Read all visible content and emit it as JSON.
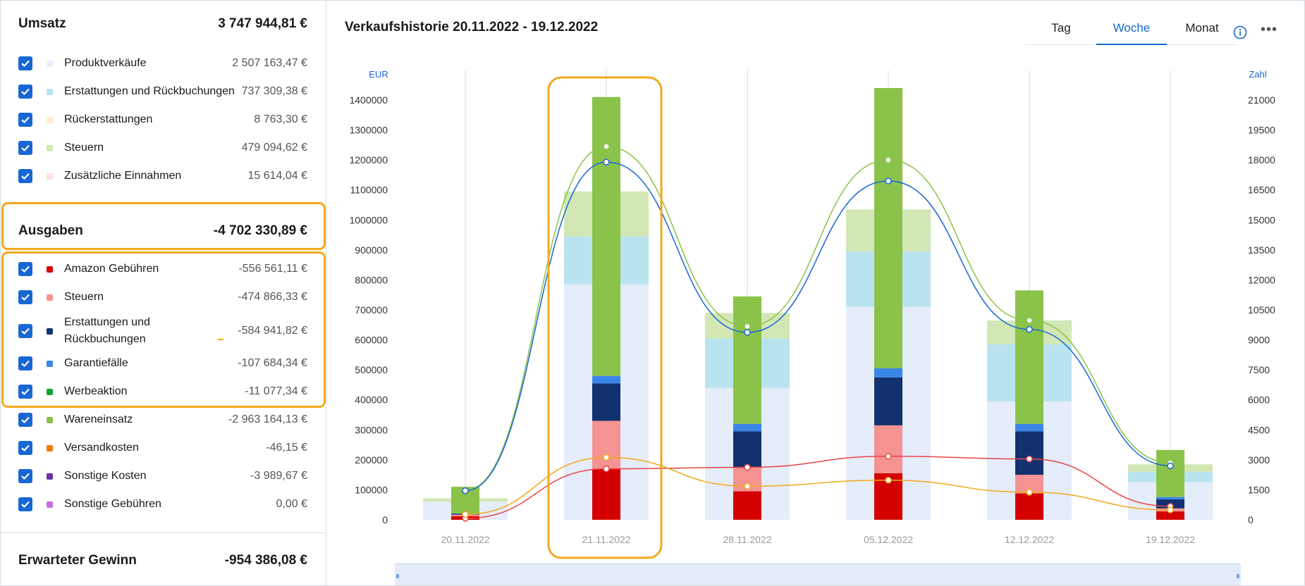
{
  "sections": {
    "revenue": {
      "title": "Umsatz",
      "total": "3 747 944,81 €",
      "items": [
        {
          "label": "Produktverkäufe",
          "value": "2 507 163,47 €",
          "color": "#e8eefb"
        },
        {
          "label": "Erstattungen und Rückbuchungen",
          "value": "737 309,38 €",
          "color": "#b9e3ef"
        },
        {
          "label": "Rückerstattungen",
          "value": "8 763,30 €",
          "color": "#fdebd0"
        },
        {
          "label": "Steuern",
          "value": "479 094,62 €",
          "color": "#d3e7b5"
        },
        {
          "label": "Zusätzliche Einnahmen",
          "value": "15 614,04 €",
          "color": "#fbdfe4"
        }
      ]
    },
    "expenses": {
      "title": "Ausgaben",
      "total": "-4 702 330,89 €",
      "items": [
        {
          "label": "Amazon Gebühren",
          "value": "-556 561,11 €",
          "color": "#d40000"
        },
        {
          "label": "Steuern",
          "value": "-474 866,33 €",
          "color": "#f59393"
        },
        {
          "label": "Erstattungen und Rückbuchungen",
          "value": "-584 941,82 €",
          "color": "#12316e"
        },
        {
          "label": "Garantiefälle",
          "value": "-107 684,34 €",
          "color": "#3a86e8"
        },
        {
          "label": "Werbeaktion",
          "value": "-11 077,34 €",
          "color": "#0ca339"
        },
        {
          "label": "Wareneinsatz",
          "value": "-2 963 164,13 €",
          "color": "#8bc34a"
        },
        {
          "label": "Versandkosten",
          "value": "-46,15 €",
          "color": "#f07a0a"
        },
        {
          "label": "Sonstige Kosten",
          "value": "-3 989,67 €",
          "color": "#6a32a8"
        },
        {
          "label": "Sonstige Gebühren",
          "value": "0,00 €",
          "color": "#c070e0"
        }
      ]
    },
    "profit": {
      "title": "Erwarteter Gewinn",
      "total": "-954 386,08 €"
    }
  },
  "chart_header": {
    "title": "Verkaufshistorie 20.11.2022 - 19.12.2022",
    "tabs": [
      "Tag",
      "Woche",
      "Monat"
    ],
    "active_tab": "Woche"
  },
  "chart_data": {
    "type": "bar",
    "categories": [
      "20.11.2022",
      "21.11.2022",
      "28.11.2022",
      "05.12.2022",
      "12.12.2022",
      "19.12.2022"
    ],
    "left_axis": {
      "label": "EUR",
      "ylim": [
        0,
        1400000
      ],
      "ticks": [
        0,
        100000,
        200000,
        300000,
        400000,
        500000,
        600000,
        700000,
        800000,
        900000,
        1000000,
        1100000,
        1200000,
        1300000,
        1400000
      ]
    },
    "right_axis": {
      "label": "Zahl",
      "ylim": [
        0,
        21000
      ],
      "ticks": [
        0,
        1500,
        3000,
        4500,
        6000,
        7500,
        9000,
        10500,
        12000,
        13500,
        15000,
        16500,
        18000,
        19500,
        21000
      ]
    },
    "revenue_stack": [
      {
        "name": "Produktverkäufe",
        "color": "#e5ecfa",
        "values": [
          60000,
          785000,
          440000,
          710000,
          395000,
          125000
        ]
      },
      {
        "name": "Erstattungen und Rückbuchungen",
        "color": "#b9e3ef",
        "values": [
          0,
          160000,
          165000,
          185000,
          190000,
          35000
        ]
      },
      {
        "name": "Steuern",
        "color": "#d3e7b5",
        "values": [
          12000,
          150000,
          85000,
          140000,
          80000,
          25000
        ]
      }
    ],
    "expense_stack": [
      {
        "name": "Amazon Gebühren",
        "color": "#d40000",
        "values": [
          12000,
          170000,
          95000,
          155000,
          88000,
          28000
        ]
      },
      {
        "name": "Steuern",
        "color": "#f59393",
        "values": [
          5000,
          160000,
          80000,
          160000,
          62000,
          10000
        ]
      },
      {
        "name": "Erstattungen und Rückbuchungen",
        "color": "#12316e",
        "values": [
          3000,
          125000,
          120000,
          160000,
          145000,
          30000
        ]
      },
      {
        "name": "Garantiefälle",
        "color": "#3a86e8",
        "values": [
          1000,
          25000,
          25000,
          30000,
          25000,
          8000
        ]
      },
      {
        "name": "Wareneinsatz",
        "color": "#8bc34a",
        "values": [
          89000,
          930000,
          425000,
          935000,
          445000,
          157000
        ]
      }
    ],
    "lines": [
      {
        "color": "#8bc34a",
        "values": [
          98000,
          1245000,
          645000,
          1200000,
          665000,
          190000
        ]
      },
      {
        "color": "#1767d4",
        "values": [
          97000,
          1193000,
          625000,
          1130000,
          635000,
          180000
        ]
      },
      {
        "color": "#e84545",
        "values": [
          5000,
          170000,
          175000,
          212000,
          203000,
          45000
        ]
      },
      {
        "color": "#f2a91b",
        "values": [
          18000,
          208000,
          112000,
          132000,
          92000,
          33000
        ]
      }
    ]
  }
}
